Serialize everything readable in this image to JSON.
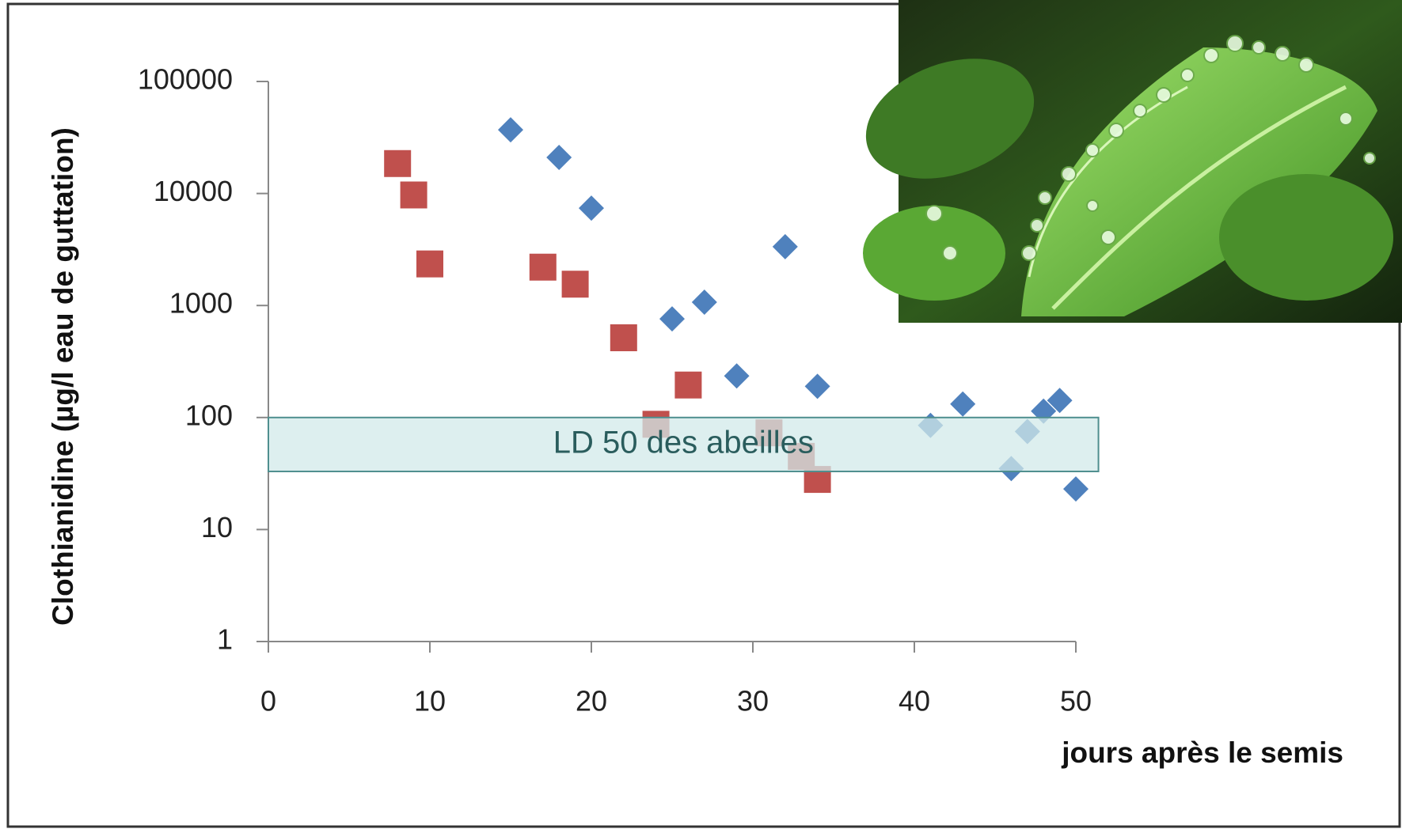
{
  "chart_data": {
    "type": "scatter",
    "y_label": "Clothianidine (µg/l eau de guttation)",
    "x_label": "jours après le semis",
    "xlim": [
      0,
      50
    ],
    "xticks": [
      0,
      10,
      20,
      30,
      40,
      50
    ],
    "ylim": [
      1,
      100000
    ],
    "yticks": [
      1,
      10,
      100,
      1000,
      10000,
      100000
    ],
    "y_scale": "log",
    "series": [
      {
        "color": "#c0504d",
        "marker": "square",
        "x": [
          8,
          9,
          10,
          17,
          19,
          22,
          24,
          26,
          31,
          33,
          34
        ],
        "values": [
          18500,
          9700,
          2350,
          2200,
          1550,
          515,
          87,
          195,
          73,
          45,
          28
        ]
      },
      {
        "color": "#4f81bd",
        "marker": "diamond",
        "x": [
          15,
          18,
          20,
          25,
          27,
          29,
          32,
          34,
          41,
          43,
          46,
          47,
          48,
          49,
          50
        ],
        "values": [
          37000,
          21000,
          7400,
          760,
          1070,
          235,
          3350,
          190,
          85,
          132,
          35,
          75,
          114,
          142,
          23
        ]
      }
    ],
    "band": {
      "label": "LD 50 des abeilles",
      "ylim": [
        33,
        100
      ],
      "xlim": [
        0,
        51.4
      ],
      "color": "#d2eaea"
    }
  }
}
